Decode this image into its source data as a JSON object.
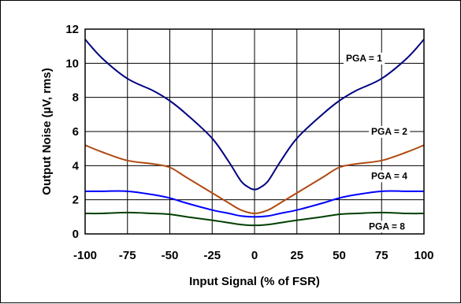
{
  "chart_data": {
    "type": "line",
    "title": "",
    "xlabel": "Input Signal (% of FSR)",
    "ylabel": "Output Noise (µV, rms)",
    "xlim": [
      -100,
      100
    ],
    "ylim": [
      0,
      12
    ],
    "x_ticks": [
      -100,
      -75,
      -50,
      -25,
      0,
      25,
      50,
      75,
      100
    ],
    "y_ticks": [
      0,
      2,
      4,
      6,
      8,
      10,
      12
    ],
    "grid": true,
    "legend": "none",
    "series": [
      {
        "name": "PGA = 1",
        "color": "#000080",
        "x": [
          -100,
          -90,
          -75,
          -60,
          -50,
          -40,
          -25,
          -15,
          -8,
          -3,
          0,
          3,
          8,
          15,
          25,
          40,
          50,
          60,
          75,
          90,
          100
        ],
        "y": [
          11.4,
          10.3,
          9.1,
          8.4,
          7.8,
          7.0,
          5.6,
          4.2,
          3.1,
          2.7,
          2.6,
          2.7,
          3.1,
          4.2,
          5.6,
          7.0,
          7.8,
          8.4,
          9.1,
          10.3,
          11.4
        ]
      },
      {
        "name": "PGA = 2",
        "color": "#b04a10",
        "x": [
          -100,
          -90,
          -75,
          -60,
          -50,
          -40,
          -25,
          -15,
          -8,
          0,
          8,
          15,
          25,
          40,
          50,
          60,
          75,
          90,
          100
        ],
        "y": [
          5.2,
          4.8,
          4.3,
          4.1,
          3.9,
          3.3,
          2.4,
          1.8,
          1.4,
          1.2,
          1.4,
          1.8,
          2.4,
          3.3,
          3.9,
          4.1,
          4.3,
          4.8,
          5.2
        ]
      },
      {
        "name": "PGA = 4",
        "color": "#0000ff",
        "x": [
          -100,
          -90,
          -75,
          -60,
          -50,
          -40,
          -25,
          -15,
          -8,
          0,
          8,
          15,
          25,
          40,
          50,
          60,
          75,
          90,
          100
        ],
        "y": [
          2.5,
          2.5,
          2.5,
          2.3,
          2.1,
          1.8,
          1.4,
          1.2,
          1.05,
          1.0,
          1.05,
          1.2,
          1.4,
          1.8,
          2.1,
          2.3,
          2.5,
          2.5,
          2.5
        ]
      },
      {
        "name": "PGA = 8",
        "color": "#004000",
        "x": [
          -100,
          -90,
          -75,
          -60,
          -50,
          -40,
          -25,
          -15,
          -8,
          0,
          8,
          15,
          25,
          40,
          50,
          60,
          75,
          90,
          100
        ],
        "y": [
          1.2,
          1.2,
          1.25,
          1.2,
          1.15,
          1.0,
          0.8,
          0.65,
          0.55,
          0.5,
          0.55,
          0.65,
          0.8,
          1.0,
          1.15,
          1.2,
          1.25,
          1.2,
          1.2
        ]
      }
    ],
    "annotations": [
      "PGA = 1",
      "PGA = 2",
      "PGA = 4",
      "PGA = 8"
    ]
  }
}
